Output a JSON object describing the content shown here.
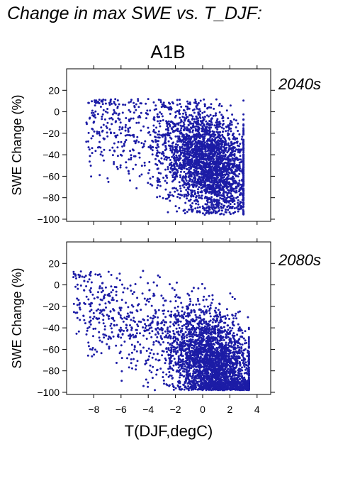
{
  "figure": {
    "title": "Change in max SWE vs. T_DJF:",
    "scenario": "A1B",
    "point_color": "#1c1ca6"
  },
  "chart_data": [
    {
      "type": "scatter",
      "panel_label": "2040s",
      "xlabel": "T(DJF,degC)",
      "ylabel": "SWE Change (%)",
      "xlim": [
        -10,
        5
      ],
      "ylim": [
        -102,
        40
      ],
      "yticks": [
        20,
        0,
        -20,
        -40,
        -60,
        -80,
        -100
      ],
      "xticks": [
        -8,
        -6,
        -4,
        -2,
        0,
        2,
        4
      ],
      "grid": false,
      "point_count_estimate": 3000,
      "cloud": {
        "x_range": [
          -8.6,
          3.0
        ],
        "y_range": [
          -96,
          14
        ],
        "upper_edge_y": 12,
        "trend_y_at_x": [
          {
            "x": -8,
            "y": -5
          },
          {
            "x": -6,
            "y": -15
          },
          {
            "x": -4,
            "y": -25
          },
          {
            "x": -2,
            "y": -35
          },
          {
            "x": 0,
            "y": -45
          },
          {
            "x": 2,
            "y": -55
          }
        ]
      }
    },
    {
      "type": "scatter",
      "panel_label": "2080s",
      "xlabel": "T(DJF,degC)",
      "ylabel": "SWE Change (%)",
      "xlim": [
        -10,
        5
      ],
      "ylim": [
        -102,
        40
      ],
      "yticks": [
        20,
        0,
        -20,
        -40,
        -60,
        -80,
        -100
      ],
      "xticks": [
        -8,
        -6,
        -4,
        -2,
        0,
        2,
        4
      ],
      "grid": false,
      "point_count_estimate": 3300,
      "cloud": {
        "x_range": [
          -9.5,
          3.4
        ],
        "y_range": [
          -98,
          15
        ],
        "upper_edge_y": 13,
        "trend_y_at_x": [
          {
            "x": -8,
            "y": -15
          },
          {
            "x": -6,
            "y": -30
          },
          {
            "x": -4,
            "y": -45
          },
          {
            "x": -2,
            "y": -57
          },
          {
            "x": 0,
            "y": -70
          },
          {
            "x": 2,
            "y": -82
          }
        ]
      }
    }
  ]
}
